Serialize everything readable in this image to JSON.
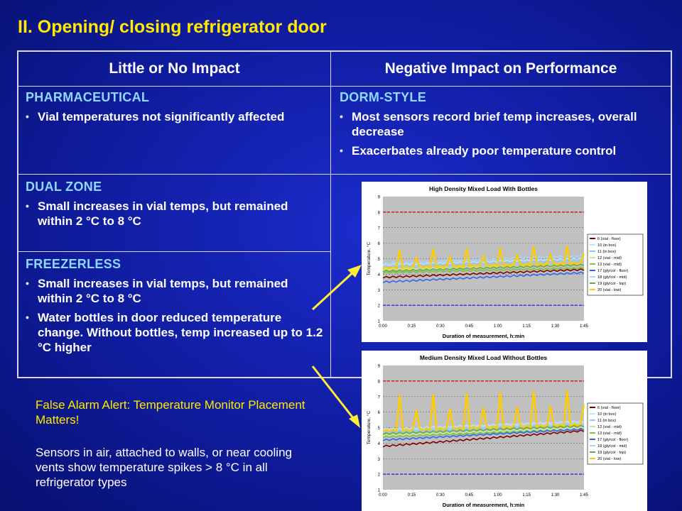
{
  "title": "II. Opening/ closing refrigerator door",
  "table": {
    "col1_header": "Little or No Impact",
    "col2_header": "Negative Impact on Performance",
    "pharmaceutical": {
      "label": "PHARMACEUTICAL",
      "bullets": [
        "Vial temperatures not significantly affected"
      ]
    },
    "dorm": {
      "label": "DORM-STYLE",
      "bullets": [
        "Most sensors record brief temp increases, overall decrease",
        "Exacerbates already poor temperature control"
      ]
    },
    "dual": {
      "label": "DUAL ZONE",
      "bullets": [
        "Small increases in vial temps, but remained within 2 °C to 8 °C"
      ]
    },
    "freezerless": {
      "label": "FREEZERLESS",
      "bullets": [
        "Small increases in vial temps, but remained within 2 °C to 8 °C",
        "Water bottles in door reduced temperature change. Without bottles, temp increased up to 1.2 °C higher"
      ]
    }
  },
  "notes": {
    "alert": "False Alarm Alert: Temperature Monitor Placement Matters!",
    "body": "Sensors in air, attached to walls, or near cooling vents show temperature spikes > 8 °C in all refrigerator types"
  },
  "arrow_color": "#ffee33",
  "chart_data": [
    {
      "type": "line",
      "title": "High Density Mixed Load With Bottles",
      "xlabel": "Duration of measurement, h:min",
      "ylabel": "Temperature, °C",
      "ylim": [
        1,
        9
      ],
      "yticks": [
        "1",
        "2",
        "3",
        "4",
        "5",
        "6",
        "7",
        "8",
        "9"
      ],
      "xticks": [
        "0:00",
        "0:15",
        "0:30",
        "0:45",
        "1:00",
        "1:15",
        "1:30",
        "1:45"
      ],
      "xmax": 1.75,
      "reference_lines": [
        8,
        2
      ],
      "grid": true,
      "legend": "right",
      "series": [
        {
          "name": "6 (vial - floor)",
          "color": "#800000",
          "start": 3.8,
          "end": 4.3,
          "spikes": 0
        },
        {
          "name": "10 (in box)",
          "color": "#c0e0ff",
          "start": 4.6,
          "end": 5.0,
          "spikes": 0
        },
        {
          "name": "11 (in box)",
          "color": "#90c8f0",
          "start": 4.5,
          "end": 4.9,
          "spikes": 0
        },
        {
          "name": "12 (vial - mid)",
          "color": "#c8e8a0",
          "start": 4.3,
          "end": 4.6,
          "spikes": 0
        },
        {
          "name": "13 (vial - mid)",
          "color": "#80c040",
          "start": 4.1,
          "end": 4.4,
          "spikes": 0
        },
        {
          "name": "17 (gly/col - floor)",
          "color": "#3366ee",
          "start": 3.5,
          "end": 4.1,
          "spikes": 0
        },
        {
          "name": "18 (gly/col - mid)",
          "color": "#a0d8ff",
          "start": 4.7,
          "end": 5.2,
          "spikes": 0
        },
        {
          "name": "19 (gly/col - top)",
          "color": "#66aa44",
          "start": 4.2,
          "end": 4.6,
          "spikes": 0
        },
        {
          "name": "20 (vial - low)",
          "color": "#ffcc00",
          "start": 4.4,
          "end": 4.7,
          "spikes": 1.1
        }
      ]
    },
    {
      "type": "line",
      "title": "Medium Density Mixed Load Without Bottles",
      "xlabel": "Duration of measurement, h:min",
      "ylabel": "Temperature, °C",
      "ylim": [
        1,
        9
      ],
      "yticks": [
        "1",
        "2",
        "3",
        "4",
        "5",
        "6",
        "7",
        "8",
        "9"
      ],
      "xticks": [
        "0:00",
        "0:15",
        "0:30",
        "0:45",
        "1:00",
        "1:15",
        "1:30",
        "1:45"
      ],
      "xmax": 1.75,
      "reference_lines": [
        8,
        2
      ],
      "grid": true,
      "legend": "right",
      "series": [
        {
          "name": "6 (vial - floor)",
          "color": "#800000",
          "start": 3.8,
          "end": 4.8,
          "spikes": 0
        },
        {
          "name": "10 (in box)",
          "color": "#c0e0ff",
          "start": 4.9,
          "end": 5.4,
          "spikes": 0
        },
        {
          "name": "11 (in box)",
          "color": "#90c8f0",
          "start": 4.7,
          "end": 5.2,
          "spikes": 0
        },
        {
          "name": "12 (vial - mid)",
          "color": "#c8e8a0",
          "start": 4.5,
          "end": 5.0,
          "spikes": 0
        },
        {
          "name": "13 (vial - mid)",
          "color": "#80c040",
          "start": 4.4,
          "end": 4.9,
          "spikes": 0
        },
        {
          "name": "17 (gly/col - floor)",
          "color": "#3366ee",
          "start": 4.2,
          "end": 4.9,
          "spikes": 0
        },
        {
          "name": "18 (gly/col - mid)",
          "color": "#a0d8ff",
          "start": 4.8,
          "end": 5.3,
          "spikes": 0
        },
        {
          "name": "19 (gly/col - top)",
          "color": "#66aa44",
          "start": 4.6,
          "end": 5.1,
          "spikes": 0
        },
        {
          "name": "20 (vial - low)",
          "color": "#ffcc00",
          "start": 4.8,
          "end": 5.2,
          "spikes": 2.2
        }
      ]
    }
  ]
}
